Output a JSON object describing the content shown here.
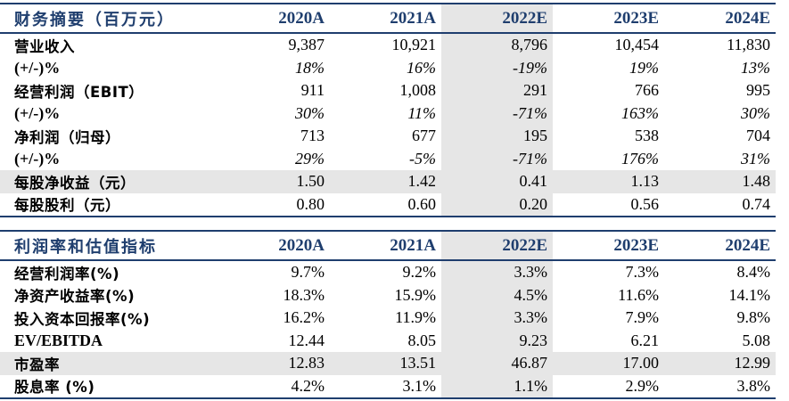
{
  "table1": {
    "title": "财务摘要（百万元）",
    "years": [
      "2020A",
      "2021A",
      "2022E",
      "2023E",
      "2024E"
    ],
    "rows": [
      {
        "label": "营业收入",
        "values": [
          "9,387",
          "10,921",
          "8,796",
          "10,454",
          "11,830"
        ]
      },
      {
        "label": "(+/-)%",
        "values": [
          "18%",
          "16%",
          "-19%",
          "19%",
          "13%"
        ]
      },
      {
        "label": "经营利润（EBIT）",
        "values": [
          "911",
          "1,008",
          "291",
          "766",
          "995"
        ]
      },
      {
        "label": "(+/-)%",
        "values": [
          "30%",
          "11%",
          "-71%",
          "163%",
          "30%"
        ]
      },
      {
        "label": "净利润（归母）",
        "values": [
          "713",
          "677",
          "195",
          "538",
          "704"
        ]
      },
      {
        "label": "(+/-)%",
        "values": [
          "29%",
          "-5%",
          "-71%",
          "176%",
          "31%"
        ]
      },
      {
        "label": "每股净收益（元）",
        "values": [
          "1.50",
          "1.42",
          "0.41",
          "1.13",
          "1.48"
        ]
      },
      {
        "label": "每股股利（元）",
        "values": [
          "0.80",
          "0.60",
          "0.20",
          "0.56",
          "0.74"
        ]
      }
    ]
  },
  "table2": {
    "title": "利润率和估值指标",
    "years": [
      "2020A",
      "2021A",
      "2022E",
      "2023E",
      "2024E"
    ],
    "rows": [
      {
        "label": "经营利润率(%)",
        "values": [
          "9.7%",
          "9.2%",
          "3.3%",
          "7.3%",
          "8.4%"
        ]
      },
      {
        "label": "净资产收益率(%)",
        "values": [
          "18.3%",
          "15.9%",
          "4.5%",
          "11.6%",
          "14.1%"
        ]
      },
      {
        "label": "投入资本回报率(%)",
        "values": [
          "16.2%",
          "11.9%",
          "3.3%",
          "7.9%",
          "9.8%"
        ]
      },
      {
        "label": "EV/EBITDA",
        "values": [
          "12.44",
          "8.05",
          "9.23",
          "6.21",
          "5.08"
        ]
      },
      {
        "label": "市盈率",
        "values": [
          "12.83",
          "13.51",
          "46.87",
          "17.00",
          "12.99"
        ]
      },
      {
        "label": "股息率 (%)",
        "values": [
          "4.2%",
          "3.1%",
          "1.1%",
          "2.9%",
          "3.8%"
        ]
      }
    ]
  },
  "colors": {
    "header_text": "#1f3e6e",
    "rule": "#1f3e6e",
    "shade": "#e6e6e6"
  }
}
